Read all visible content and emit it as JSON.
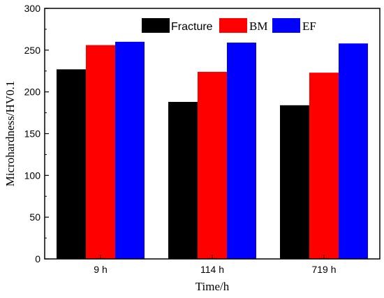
{
  "chart_data": {
    "type": "bar",
    "title": "",
    "xlabel": "Time/h",
    "ylabel": "Microhardness/HV0.1",
    "categories": [
      "9 h",
      "114 h",
      "719 h"
    ],
    "ylim": [
      0,
      300
    ],
    "yticks": [
      0,
      50,
      100,
      150,
      200,
      250,
      300
    ],
    "series": [
      {
        "name": "Fracture",
        "color": "#000000",
        "values": [
          227,
          188,
          184
        ]
      },
      {
        "name": "BM",
        "color": "#ff0000",
        "values": [
          256,
          224,
          223
        ]
      },
      {
        "name": "EF",
        "color": "#0000ff",
        "values": [
          260,
          259,
          258
        ]
      }
    ],
    "legend_position": "top-right",
    "grid": false
  }
}
